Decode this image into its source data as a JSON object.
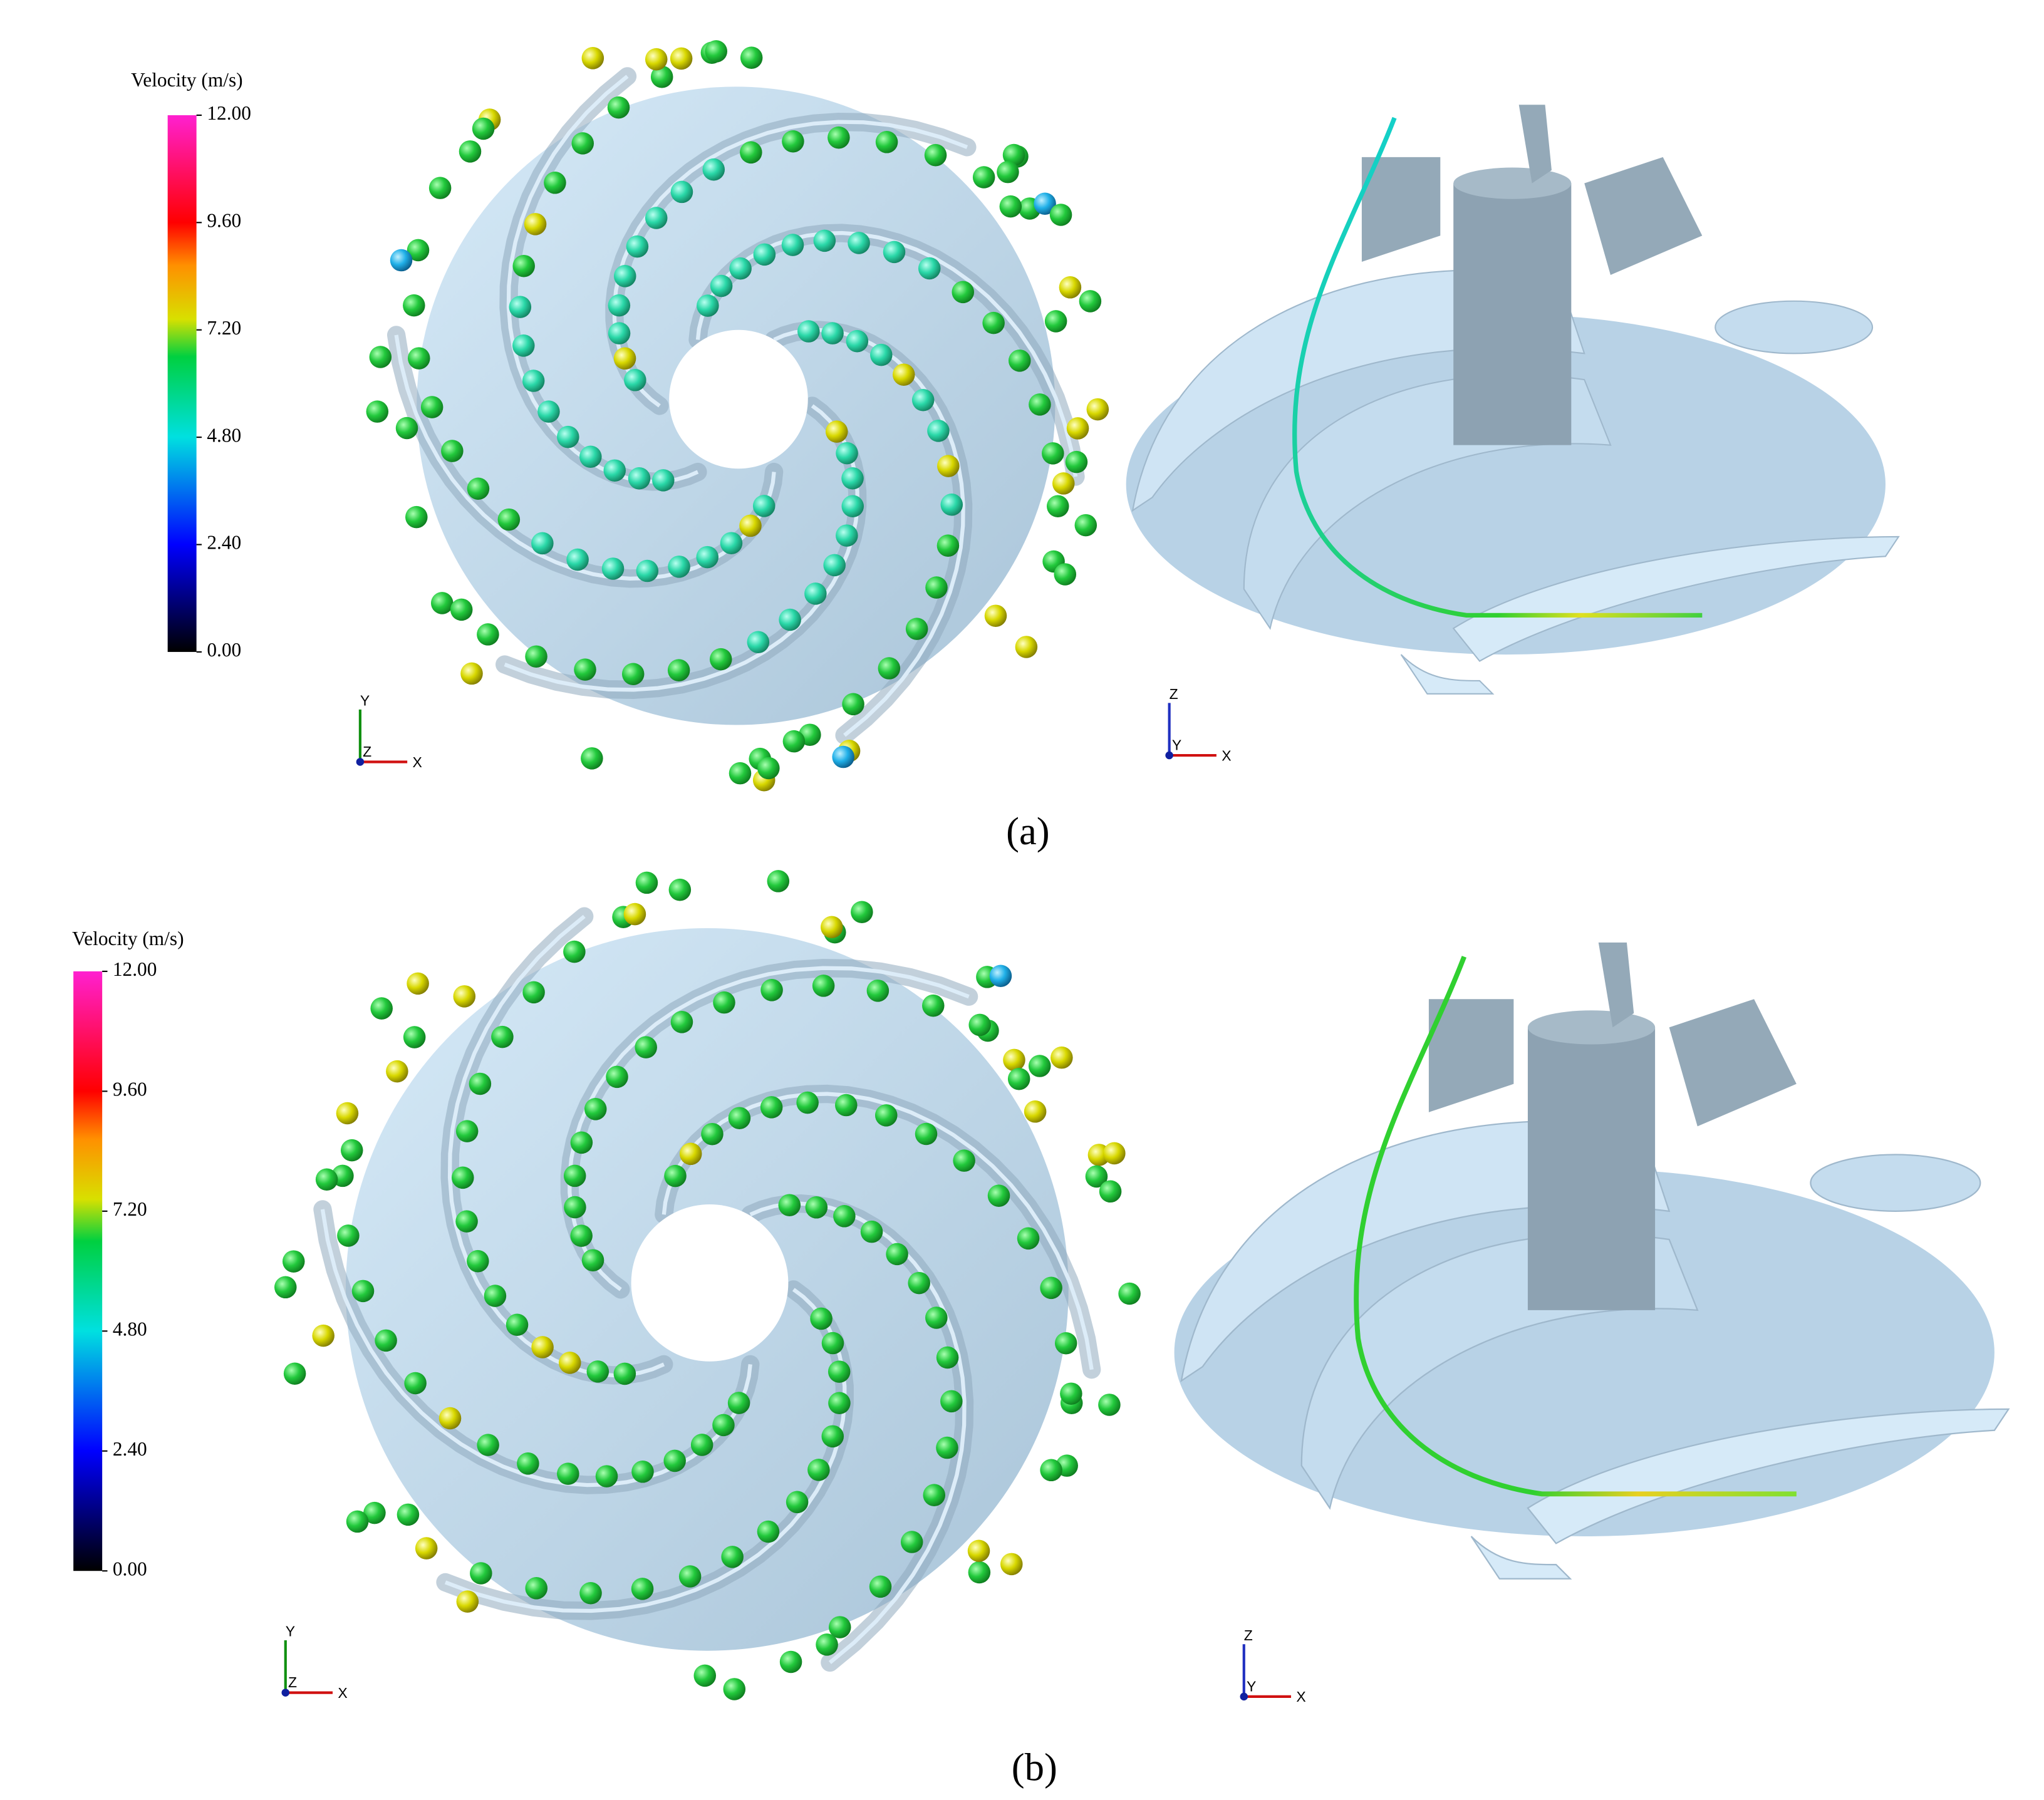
{
  "panels": [
    {
      "label": "(a)",
      "colorbar": {
        "title": "Velocity (m/s)",
        "ticks": [
          {
            "value": 12,
            "label": "12.00"
          },
          {
            "value": 9.6,
            "label": "9.60"
          },
          {
            "value": 7.2,
            "label": "7.20"
          },
          {
            "value": 4.8,
            "label": "4.80"
          },
          {
            "value": 2.4,
            "label": "2.40"
          },
          {
            "value": 0,
            "label": "0.00"
          }
        ]
      },
      "top_view_axes": [
        "Y",
        "Z",
        "X"
      ],
      "side_view_axes": [
        "Z",
        "Y",
        "X"
      ]
    },
    {
      "label": "(b)",
      "colorbar": {
        "title": "Velocity (m/s)",
        "ticks": [
          {
            "value": 12,
            "label": "12.00"
          },
          {
            "value": 9.6,
            "label": "9.60"
          },
          {
            "value": 7.2,
            "label": "7.20"
          },
          {
            "value": 4.8,
            "label": "4.80"
          },
          {
            "value": 2.4,
            "label": "2.40"
          },
          {
            "value": 0,
            "label": "0.00"
          }
        ]
      },
      "top_view_axes": [
        "Y",
        "Z",
        "X"
      ],
      "side_view_axes": [
        "Z",
        "Y",
        "X"
      ]
    }
  ]
}
